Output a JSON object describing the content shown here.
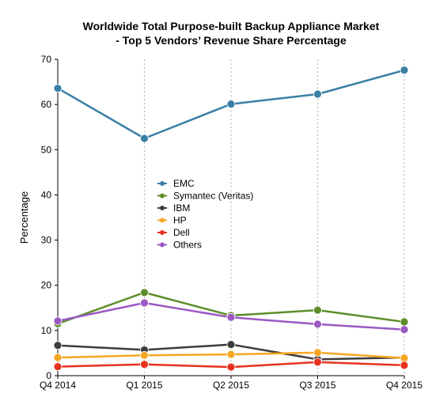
{
  "chart_data": {
    "type": "line",
    "title_line1": "Worldwide Total Purpose-built Backup Appliance Market",
    "title_line2": "- Top 5 Vendors’ Revenue Share Percentage",
    "xlabel": "",
    "ylabel": "Percentage",
    "categories": [
      "Q4 2014",
      "Q1 2015",
      "Q2 2015",
      "Q3 2015",
      "Q4 2015"
    ],
    "ylim": [
      0,
      70
    ],
    "yticks": [
      "0",
      "10",
      "20",
      "30",
      "40",
      "50",
      "60",
      "70"
    ],
    "grid": "vertical dotted",
    "legend_position": "center",
    "series": [
      {
        "name": "EMC",
        "color": "#3a7fa6",
        "values": [
          63.6,
          52.5,
          60.1,
          62.3,
          67.6
        ]
      },
      {
        "name": "Symantec (Veritas)",
        "color": "#5d8e2a",
        "values": [
          11.5,
          18.4,
          13.3,
          14.5,
          11.9
        ]
      },
      {
        "name": "IBM",
        "color": "#3d3d3d",
        "values": [
          6.7,
          5.7,
          6.9,
          3.6,
          4.0
        ]
      },
      {
        "name": "HP",
        "color": "#f5a623",
        "values": [
          4.0,
          4.5,
          4.7,
          5.1,
          3.9
        ]
      },
      {
        "name": "Dell",
        "color": "#e8321e",
        "values": [
          2.0,
          2.5,
          1.9,
          3.0,
          2.3
        ]
      },
      {
        "name": "Others",
        "color": "#9b59c4",
        "values": [
          12.1,
          16.1,
          12.9,
          11.4,
          10.2
        ]
      }
    ]
  }
}
